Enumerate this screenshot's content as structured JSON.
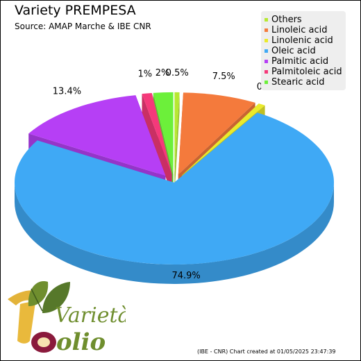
{
  "chart_data": {
    "type": "pie",
    "title": "Variety PREMPESA",
    "subtitle": "Source: AMAP Marche & IBE CNR",
    "legend_position": "top-right",
    "slices": [
      {
        "name": "Others",
        "value": 0.5,
        "label": "0.5%",
        "color": "#b6e831"
      },
      {
        "name": "Linoleic acid",
        "value": 7.5,
        "label": "7.5%",
        "color": "#f47a3c"
      },
      {
        "name": "Linolenic acid",
        "value": 0.7,
        "label": "0.7%",
        "color": "#eaea2c"
      },
      {
        "name": "Oleic acid",
        "value": 74.9,
        "label": "74.9%",
        "color": "#3fa9f5"
      },
      {
        "name": "Palmitic acid",
        "value": 13.4,
        "label": "13.4%",
        "color": "#b63ff5"
      },
      {
        "name": "Palmitoleic acid",
        "value": 1,
        "label": "1%",
        "color": "#f5397a"
      },
      {
        "name": "Stearic acid",
        "value": 2,
        "label": "2%",
        "color": "#6cf03a"
      }
    ]
  },
  "footer": {
    "credit": "(IBE - CNR) Chart created at 01/05/2025 23:47:39",
    "logo_text_top": "Varietà",
    "logo_text_bottom": "olio"
  }
}
